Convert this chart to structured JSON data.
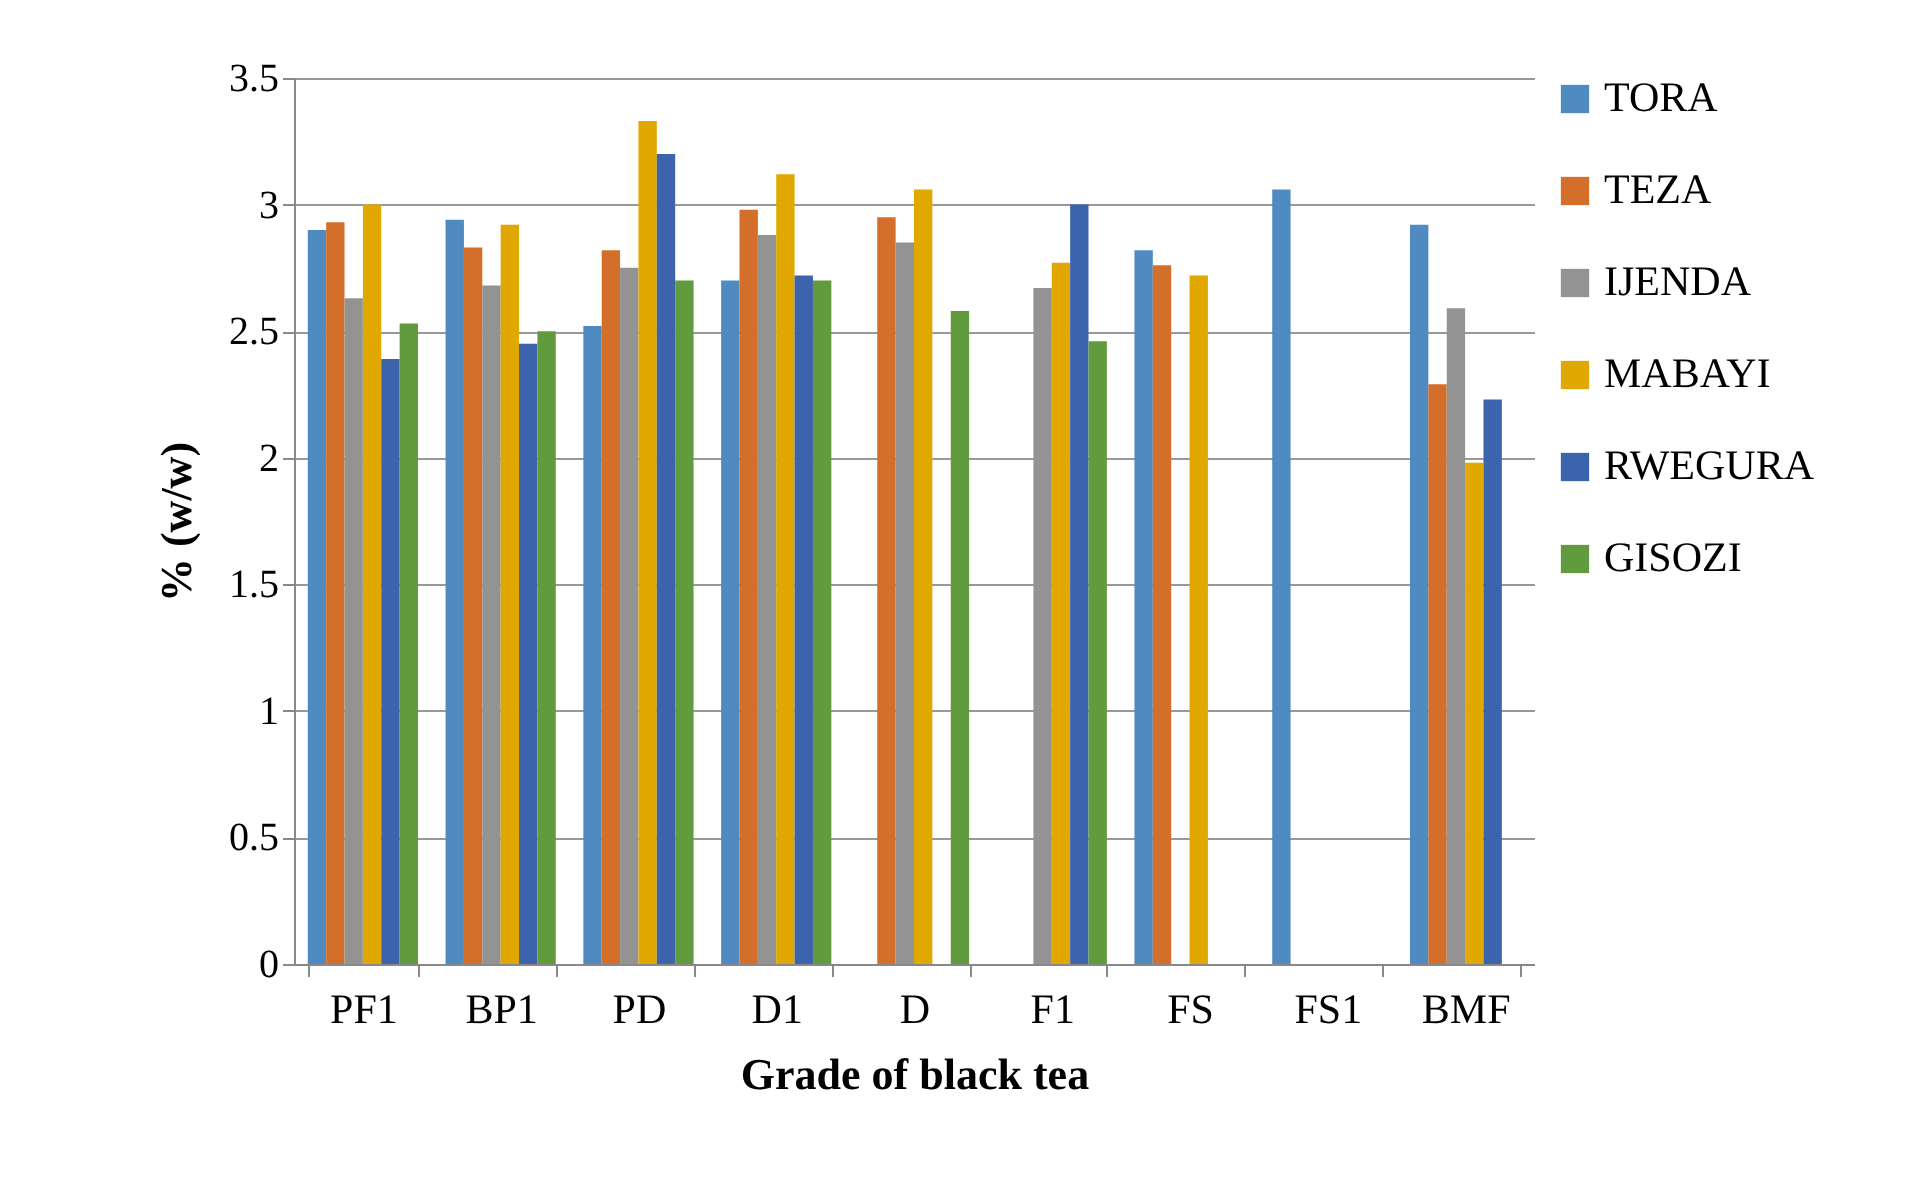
{
  "chart_data": {
    "type": "bar",
    "xlabel": "Grade of black tea",
    "ylabel": "% (w/w)",
    "categories": [
      "PF1",
      "BP1",
      "PD",
      "D1",
      "D",
      "F1",
      "FS",
      "FS1",
      "BMF"
    ],
    "series": [
      {
        "name": "TORA",
        "color": "#4f8bc0",
        "values": [
          2.9,
          2.94,
          2.52,
          2.7,
          null,
          null,
          2.82,
          3.06,
          2.92
        ]
      },
      {
        "name": "TEZA",
        "color": "#d36f2b",
        "values": [
          2.93,
          2.83,
          2.82,
          2.98,
          2.95,
          null,
          2.76,
          null,
          2.29
        ]
      },
      {
        "name": "IJENDA",
        "color": "#939393",
        "values": [
          2.63,
          2.68,
          2.75,
          2.88,
          2.85,
          2.67,
          null,
          null,
          2.59
        ]
      },
      {
        "name": "MABAYI",
        "color": "#e0a800",
        "values": [
          3.0,
          2.92,
          3.33,
          3.12,
          3.06,
          2.77,
          2.72,
          null,
          1.98
        ]
      },
      {
        "name": "RWEGURA",
        "color": "#3b64ad",
        "values": [
          2.39,
          2.45,
          3.2,
          2.72,
          null,
          3.0,
          null,
          null,
          2.23
        ]
      },
      {
        "name": "GISOZI",
        "color": "#629b3e",
        "values": [
          2.53,
          2.5,
          2.7,
          2.7,
          2.58,
          2.46,
          null,
          null,
          null
        ]
      }
    ],
    "ylim": [
      0,
      3.5
    ],
    "yticks": [
      0,
      0.5,
      1,
      1.5,
      2,
      2.5,
      3,
      3.5
    ],
    "grid": "y",
    "legend": "right"
  }
}
